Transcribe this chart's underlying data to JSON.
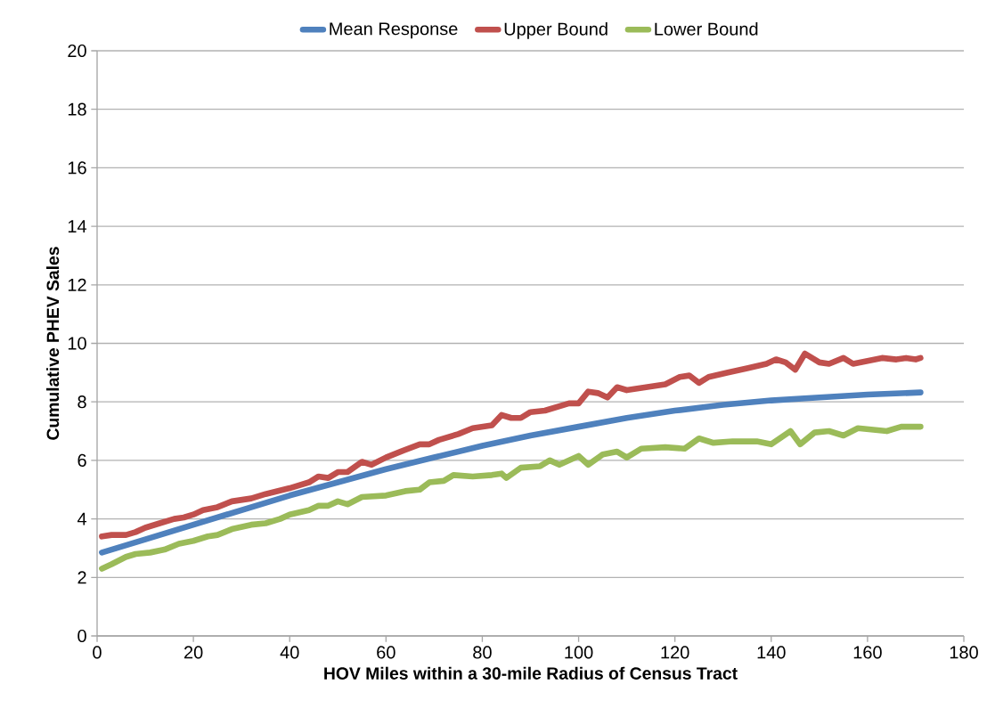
{
  "chart_data": {
    "type": "line",
    "xlabel": "HOV Miles within a 30-mile Radius of Census Tract",
    "ylabel": "Cumulative PHEV Sales",
    "xlim": [
      0,
      180
    ],
    "xticks": [
      0,
      20,
      40,
      60,
      80,
      100,
      120,
      140,
      160,
      180
    ],
    "ylim": [
      0,
      20
    ],
    "yticks": [
      0,
      2,
      4,
      6,
      8,
      10,
      12,
      14,
      16,
      18,
      20
    ],
    "grid": "y",
    "legend": "top",
    "marker": "none",
    "line_style": "solid",
    "series": [
      {
        "name": "Mean Response",
        "color": "#4f81bd",
        "x": [
          1,
          10,
          20,
          30,
          40,
          50,
          60,
          70,
          80,
          90,
          100,
          110,
          120,
          130,
          140,
          150,
          160,
          171
        ],
        "values": [
          2.85,
          3.3,
          3.8,
          4.3,
          4.8,
          5.25,
          5.7,
          6.1,
          6.5,
          6.85,
          7.15,
          7.45,
          7.7,
          7.9,
          8.05,
          8.15,
          8.25,
          8.32
        ]
      },
      {
        "name": "Upper Bound",
        "color": "#c0504d",
        "x": [
          1,
          3,
          6,
          8,
          10,
          13,
          16,
          18,
          20,
          22,
          25,
          28,
          32,
          35,
          40,
          44,
          46,
          48,
          50,
          52,
          55,
          57,
          60,
          63,
          67,
          69,
          71,
          75,
          78,
          82,
          84,
          86,
          88,
          90,
          93,
          95,
          98,
          100,
          102,
          104,
          106,
          108,
          110,
          114,
          118,
          121,
          123,
          125,
          127,
          131,
          135,
          139,
          141,
          143,
          145,
          147,
          150,
          152,
          155,
          157,
          160,
          163,
          166,
          168,
          170,
          171
        ],
        "values": [
          3.4,
          3.45,
          3.45,
          3.55,
          3.7,
          3.85,
          4.0,
          4.05,
          4.15,
          4.3,
          4.4,
          4.6,
          4.7,
          4.85,
          5.05,
          5.25,
          5.45,
          5.4,
          5.6,
          5.6,
          5.95,
          5.85,
          6.1,
          6.3,
          6.55,
          6.55,
          6.7,
          6.9,
          7.1,
          7.2,
          7.55,
          7.45,
          7.45,
          7.65,
          7.7,
          7.8,
          7.95,
          7.95,
          8.35,
          8.3,
          8.15,
          8.5,
          8.4,
          8.5,
          8.6,
          8.85,
          8.9,
          8.65,
          8.85,
          9.0,
          9.15,
          9.3,
          9.45,
          9.35,
          9.1,
          9.65,
          9.35,
          9.3,
          9.5,
          9.3,
          9.4,
          9.5,
          9.45,
          9.5,
          9.45,
          9.5
        ]
      },
      {
        "name": "Lower Bound",
        "color": "#9bbb59",
        "x": [
          1,
          3,
          6,
          8,
          11,
          14,
          17,
          20,
          23,
          25,
          28,
          32,
          35,
          38,
          40,
          44,
          46,
          48,
          50,
          52,
          55,
          60,
          64,
          67,
          69,
          72,
          74,
          78,
          82,
          84,
          85,
          88,
          92,
          94,
          96,
          100,
          102,
          105,
          108,
          110,
          113,
          118,
          122,
          125,
          128,
          132,
          137,
          140,
          144,
          146,
          149,
          152,
          155,
          158,
          161,
          164,
          167,
          171
        ],
        "values": [
          2.3,
          2.45,
          2.7,
          2.8,
          2.85,
          2.95,
          3.15,
          3.25,
          3.4,
          3.45,
          3.65,
          3.8,
          3.85,
          4.0,
          4.15,
          4.3,
          4.45,
          4.45,
          4.6,
          4.5,
          4.75,
          4.8,
          4.95,
          5.0,
          5.25,
          5.3,
          5.5,
          5.45,
          5.5,
          5.55,
          5.4,
          5.75,
          5.8,
          6.0,
          5.85,
          6.15,
          5.85,
          6.2,
          6.3,
          6.1,
          6.4,
          6.45,
          6.4,
          6.75,
          6.6,
          6.65,
          6.65,
          6.55,
          7.0,
          6.55,
          6.95,
          7.0,
          6.85,
          7.1,
          7.05,
          7.0,
          7.15,
          7.15
        ]
      }
    ]
  }
}
